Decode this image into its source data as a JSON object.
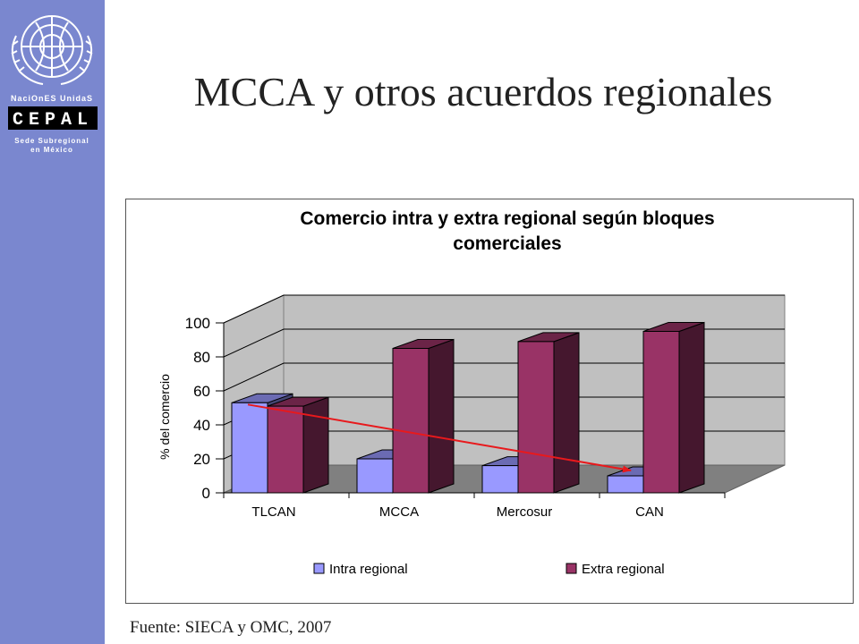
{
  "slide": {
    "title": "MCCA y otros acuerdos regionales",
    "source": "Fuente: SIECA y OMC, 2007"
  },
  "logo": {
    "line1": "NaciOnES UnidaS",
    "line2": "CEPAL",
    "line3": "Sede Subregional",
    "line4": "en México",
    "icon": "un-emblem-icon"
  },
  "colors": {
    "sidebar": "#7a87cf",
    "intra": "#9999ff",
    "extra": "#993366",
    "trend": "#e8191c"
  },
  "chart_data": {
    "type": "bar",
    "title_lines": [
      "Comercio intra y extra regional según bloques",
      "comerciales"
    ],
    "ylabel": "% del comercio",
    "categories": [
      "TLCAN",
      "MCCA",
      "Mercosur",
      "CAN"
    ],
    "series": [
      {
        "name": "Intra regional",
        "values": [
          53,
          20,
          16,
          10
        ]
      },
      {
        "name": "Extra regional",
        "values": [
          51,
          85,
          89,
          95
        ]
      }
    ],
    "ylim": [
      0,
      100
    ],
    "yticks": [
      "0",
      "20",
      "40",
      "60",
      "80",
      "100"
    ],
    "grid": true,
    "legend": "bottom",
    "trend_line": {
      "from": "TLCAN",
      "to": "CAN",
      "series": "Intra regional"
    }
  }
}
